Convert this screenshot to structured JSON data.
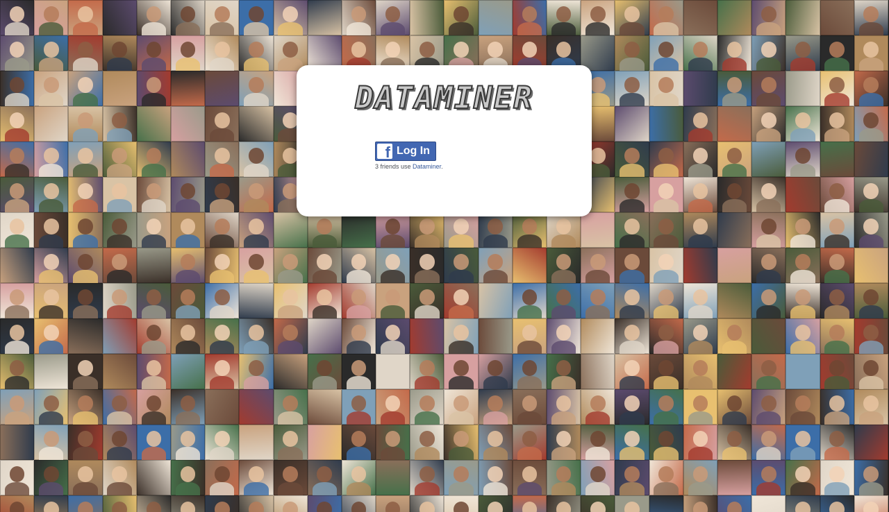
{
  "app": {
    "title": "DATAMINER"
  },
  "login": {
    "button_label": "Log In",
    "icon": "facebook-icon",
    "friends_prefix": "3 friends use",
    "friends_app_link": "Dataminer",
    "friends_suffix": "."
  },
  "background": {
    "description_icon": "profile-photo-mosaic",
    "palette": [
      "#6b4a3a",
      "#c9a27e",
      "#2f3b4c",
      "#8a6f5a",
      "#d9c3a5",
      "#4a5b3a",
      "#a33b2e",
      "#3c6ea8",
      "#e0d6c8",
      "#5c4b6e",
      "#b08a5c",
      "#2a2a2a",
      "#7fa0b8",
      "#c46a4a",
      "#9a9a8a",
      "#e8c070",
      "#46704a",
      "#d7a0a0",
      "#3a2f28",
      "#f0e6d8"
    ],
    "skin": [
      "#e8c3a0",
      "#c99a78",
      "#8d5e44",
      "#f2d2b6",
      "#b57d5a",
      "#6e4633"
    ]
  }
}
